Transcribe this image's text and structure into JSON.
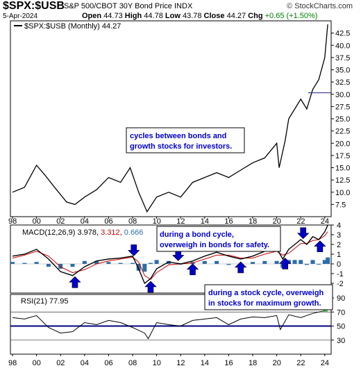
{
  "header": {
    "symbol": "$SPX:$USB",
    "description": "S&P 500/CBOT 30Y Bond Price",
    "exchange": "INDX",
    "date": "5-Apr-2024",
    "open_label": "Open",
    "open": "44.73",
    "high_label": "High",
    "high": "44.78",
    "low_label": "Low",
    "low": "43.78",
    "close_label": "Close",
    "close": "44.27",
    "chg_label": "Chg",
    "chg": "+0.65 (+1.50%)",
    "brand": "© StockCharts.com"
  },
  "colors": {
    "price": "#000000",
    "macd_signal": "#cc0000",
    "histogram": "#2a6ea8",
    "annotation": "#0000cc",
    "arrow": "#0000cc"
  },
  "annotations": {
    "top": [
      "cycles between bonds and",
      "growth stocks for investors."
    ],
    "bond": [
      "during a bond cycle,",
      "overweigh in bonds for safety."
    ],
    "stock": [
      "during a stock cycle, overweigh",
      "in stocks for maximum growth."
    ]
  },
  "chart_data": [
    {
      "type": "line",
      "legend": "$SPX:$USB (Monthly) 44.27",
      "ylim": [
        5,
        45
      ],
      "yticks": [
        "7.5",
        "10.0",
        "12.5",
        "15.0",
        "17.5",
        "20.0",
        "22.5",
        "25.0",
        "27.5",
        "30.0",
        "32.5",
        "35.0",
        "37.5",
        "40.0",
        "42.5"
      ],
      "x": [
        1998.0,
        1999.0,
        2000.0,
        2000.7,
        2001.5,
        2002.5,
        2003.2,
        2004.0,
        2005.0,
        2006.0,
        2007.0,
        2007.8,
        2008.5,
        2009.2,
        2010.0,
        2011.0,
        2012.0,
        2013.0,
        2014.0,
        2015.0,
        2016.0,
        2017.0,
        2018.0,
        2019.0,
        2020.0,
        2020.2,
        2020.7,
        2021.0,
        2021.5,
        2022.0,
        2022.5,
        2023.0,
        2023.5,
        2024.0,
        2024.25
      ],
      "values": [
        10.0,
        11.0,
        15.5,
        13.5,
        11.0,
        8.0,
        7.5,
        9.0,
        10.5,
        13.0,
        12.0,
        15.0,
        10.0,
        6.0,
        9.0,
        10.0,
        9.0,
        12.0,
        13.0,
        14.0,
        13.0,
        14.5,
        16.0,
        17.0,
        20.0,
        15.0,
        20.5,
        25.0,
        27.0,
        29.0,
        27.0,
        31.0,
        33.0,
        37.5,
        44.27
      ],
      "horizontal_line": 30.3
    },
    {
      "type": "line",
      "legend": [
        "MACD(12,26,9)",
        "3.978",
        "3.312",
        "0.666"
      ],
      "ylim": [
        -3,
        4
      ],
      "yticks": [
        "-2",
        "-1",
        "0",
        "1",
        "2",
        "3",
        "4"
      ],
      "x": [
        1998.0,
        1999.0,
        2000.0,
        2001.0,
        2002.0,
        2003.0,
        2004.0,
        2005.0,
        2006.0,
        2007.0,
        2008.0,
        2008.5,
        2009.0,
        2009.5,
        2010.0,
        2011.0,
        2012.0,
        2013.0,
        2014.0,
        2015.0,
        2016.0,
        2017.0,
        2018.0,
        2019.0,
        2020.0,
        2020.5,
        2021.0,
        2021.5,
        2022.0,
        2022.5,
        2023.0,
        2023.5,
        2024.0,
        2024.25
      ],
      "series": [
        {
          "values": [
            0.8,
            1.0,
            1.5,
            0.5,
            -0.8,
            -1.2,
            -0.3,
            0.3,
            0.5,
            0.6,
            0.8,
            -0.5,
            -2.0,
            -1.5,
            -0.5,
            0.2,
            0.0,
            0.3,
            0.8,
            1.2,
            0.8,
            0.5,
            0.8,
            1.3,
            1.6,
            0.5,
            1.5,
            2.0,
            2.5,
            2.0,
            2.8,
            2.5,
            3.3,
            3.978
          ]
        },
        {
          "values": [
            0.6,
            0.9,
            1.3,
            0.8,
            -0.3,
            -0.9,
            -0.6,
            0.0,
            0.3,
            0.5,
            0.7,
            0.2,
            -1.2,
            -1.6,
            -0.9,
            -0.1,
            0.0,
            0.1,
            0.5,
            0.9,
            0.9,
            0.6,
            0.6,
            1.0,
            1.3,
            0.9,
            1.1,
            1.6,
            2.1,
            2.1,
            2.4,
            2.5,
            2.9,
            3.312
          ]
        },
        {
          "values": [
            0.2,
            0.1,
            0.2,
            -0.3,
            -0.5,
            -0.3,
            0.3,
            0.3,
            0.2,
            0.1,
            0.1,
            -0.7,
            -0.8,
            0.1,
            0.4,
            0.3,
            0.0,
            0.2,
            0.3,
            0.3,
            -0.1,
            -0.1,
            0.2,
            0.3,
            0.3,
            -0.4,
            0.4,
            0.4,
            0.4,
            -0.1,
            0.4,
            0.0,
            0.4,
            0.666
          ]
        }
      ],
      "arrows_up": [
        2003.2,
        2009.5,
        2013.0,
        2017.0,
        2020.7,
        2023.6
      ],
      "arrows_down": [
        2008.1,
        2011.8,
        2014.8,
        2018.9,
        2022.2
      ]
    },
    {
      "type": "line",
      "legend": [
        "RSI(21)",
        "77.95"
      ],
      "ylim": [
        10,
        95
      ],
      "yticks": [
        "30",
        "50",
        "70",
        "90"
      ],
      "ref_lines": [
        30,
        50,
        70
      ],
      "x": [
        1998.0,
        1999.0,
        2000.0,
        2001.0,
        2002.0,
        2003.0,
        2004.0,
        2005.0,
        2006.0,
        2007.0,
        2008.0,
        2009.0,
        2009.3,
        2010.0,
        2011.0,
        2012.0,
        2013.0,
        2014.0,
        2015.0,
        2016.0,
        2017.0,
        2018.0,
        2019.0,
        2020.0,
        2020.3,
        2021.0,
        2022.0,
        2023.0,
        2024.0,
        2024.25
      ],
      "values": [
        62,
        60,
        65,
        48,
        40,
        42,
        55,
        52,
        58,
        55,
        48,
        40,
        32,
        55,
        52,
        50,
        58,
        60,
        62,
        52,
        60,
        63,
        62,
        65,
        45,
        66,
        62,
        68,
        72,
        77.95
      ]
    }
  ],
  "x_axis": {
    "labels": [
      "98",
      "00",
      "02",
      "04",
      "06",
      "08",
      "10",
      "12",
      "14",
      "16",
      "18",
      "20",
      "22",
      "24"
    ]
  }
}
